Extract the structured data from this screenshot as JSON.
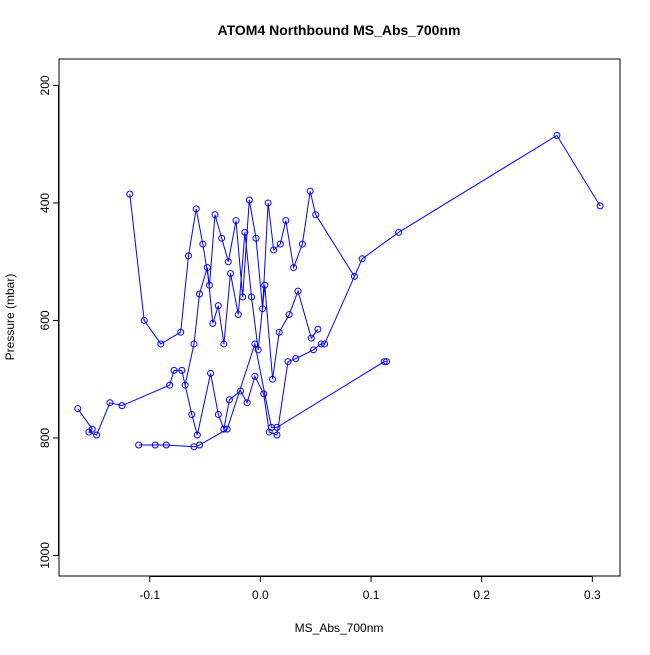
{
  "chart_data": {
    "type": "line",
    "title": "ATOM4 Northbound MS_Abs_700nm",
    "xlabel": "MS_Abs_700nm",
    "ylabel": "Pressure (mbar)",
    "xlim": [
      -0.182,
      0.325
    ],
    "ylim": [
      1035,
      155
    ],
    "y_reversed": true,
    "x_ticks": [
      -0.1,
      0.0,
      0.1,
      0.2,
      0.3
    ],
    "x_tick_labels": [
      "-0.1",
      "0.0",
      "0.1",
      "0.2",
      "0.3"
    ],
    "y_ticks": [
      200,
      400,
      600,
      800,
      1000
    ],
    "y_tick_labels": [
      "200",
      "400",
      "600",
      "800",
      "1000"
    ],
    "grid": false,
    "legend": "none",
    "series": [
      {
        "color": "#0000ff",
        "marker": "open-circle",
        "x": [
          -0.165,
          -0.152,
          -0.155,
          -0.148,
          -0.136,
          -0.125,
          -0.082,
          -0.078,
          -0.071,
          -0.062,
          -0.057,
          -0.045,
          -0.038,
          -0.033,
          -0.028,
          -0.018,
          -0.012,
          -0.005,
          0.003,
          0.008,
          0.015,
          0.025,
          0.032,
          0.048,
          0.055,
          0.058,
          0.092,
          0.125,
          0.268,
          0.307
        ],
        "y": [
          750,
          785,
          790,
          795,
          740,
          745,
          710,
          685,
          685,
          760,
          795,
          690,
          760,
          785,
          735,
          720,
          740,
          695,
          725,
          790,
          795,
          670,
          665,
          650,
          640,
          640,
          495,
          450,
          285,
          405
        ]
      },
      {
        "color": "#0000ff",
        "marker": "open-circle",
        "x": [
          -0.11,
          -0.095,
          -0.085,
          -0.06,
          -0.055,
          -0.03,
          -0.005,
          0.01,
          0.015,
          0.112,
          0.114
        ],
        "y": [
          812,
          812,
          812,
          815,
          812,
          785,
          640,
          782,
          782,
          670,
          670
        ]
      },
      {
        "color": "#0000ff",
        "marker": "open-circle",
        "x": [
          -0.118,
          -0.105,
          -0.09,
          -0.072,
          -0.065,
          -0.058,
          -0.052,
          -0.046,
          -0.041,
          -0.035,
          -0.029,
          -0.022,
          -0.016,
          -0.01,
          -0.004,
          0.002,
          0.007,
          0.012,
          0.018,
          0.023,
          0.03,
          0.038,
          0.045,
          0.05,
          0.085
        ],
        "y": [
          385,
          600,
          640,
          620,
          490,
          410,
          470,
          540,
          420,
          460,
          500,
          430,
          560,
          395,
          460,
          580,
          400,
          480,
          470,
          430,
          510,
          470,
          380,
          420,
          525
        ]
      },
      {
        "color": "#0000ff",
        "marker": "open-circle",
        "x": [
          -0.068,
          -0.06,
          -0.055,
          -0.048,
          -0.043,
          -0.038,
          -0.033,
          -0.027,
          -0.02,
          -0.014,
          -0.008,
          -0.002,
          0.004,
          0.011,
          0.017,
          0.026,
          0.034,
          0.046,
          0.052
        ],
        "y": [
          710,
          640,
          555,
          510,
          605,
          575,
          640,
          520,
          590,
          450,
          560,
          650,
          540,
          700,
          620,
          590,
          550,
          630,
          615
        ]
      }
    ]
  }
}
